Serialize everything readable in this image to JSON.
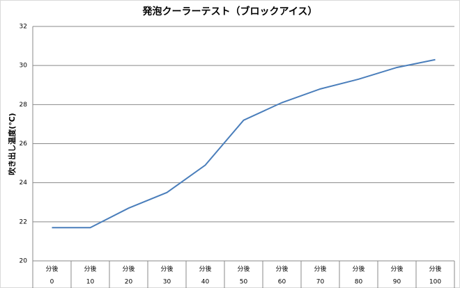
{
  "chart_data": {
    "type": "line",
    "title": "発泡クーラーテスト（ブロックアイス）",
    "y_label": "吹き出し温度(℃)",
    "category_unit": "分後",
    "categories": [
      "0",
      "10",
      "20",
      "30",
      "40",
      "50",
      "60",
      "70",
      "80",
      "90",
      "100"
    ],
    "series": [
      {
        "name": "吹き出し温度",
        "color": "#4a7ebb",
        "values": [
          21.7,
          21.7,
          22.7,
          23.5,
          24.9,
          27.2,
          28.1,
          28.8,
          29.3,
          29.9,
          30.3
        ]
      }
    ],
    "ylim": [
      20,
      32
    ],
    "yticks": [
      20,
      22,
      24,
      26,
      28,
      30,
      32
    ],
    "grid": true
  }
}
